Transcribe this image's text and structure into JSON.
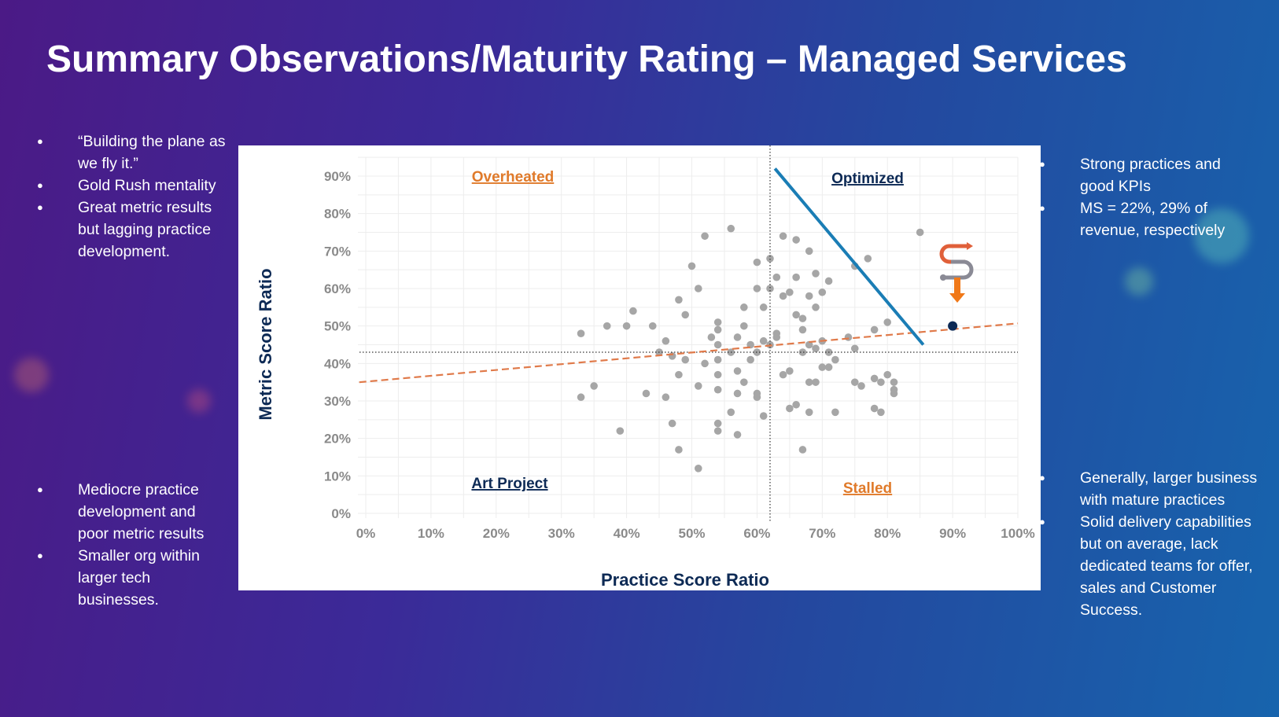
{
  "title": "Summary Observations/Maturity Rating – Managed Services",
  "left_top_bullets": [
    "“Building the plane as we fly it.”",
    "Gold Rush mentality",
    "Great metric results but lagging practice development."
  ],
  "left_bottom_bullets": [
    "Mediocre practice development and poor metric results",
    "Smaller org within larger tech businesses."
  ],
  "right_top_bullets": [
    "Strong practices and good KPIs",
    "MS = 22%, 29% of revenue, respectively"
  ],
  "right_bottom_bullets": [
    "Generally, larger business with mature practices",
    "Solid delivery capabilities but on average, lack dedicated teams for offer, sales and Customer Success."
  ],
  "chart_data": {
    "type": "scatter",
    "xlabel": "Practice Score Ratio",
    "ylabel": "Metric Score Ratio",
    "xlim": [
      0,
      100
    ],
    "ylim": [
      0,
      90
    ],
    "x_ticks": [
      "0%",
      "10%",
      "20%",
      "30%",
      "40%",
      "50%",
      "60%",
      "70%",
      "80%",
      "90%",
      "100%"
    ],
    "y_ticks": [
      "0%",
      "10%",
      "20%",
      "30%",
      "40%",
      "50%",
      "60%",
      "70%",
      "80%",
      "90%"
    ],
    "grid": true,
    "quadrant_labels": {
      "top_left": "Overheated",
      "top_right": "Optimized",
      "bottom_left": "Art Project",
      "bottom_right": "Stalled"
    },
    "quadrant_divider": {
      "x": 62,
      "y": 43
    },
    "trendline": {
      "from": [
        -1,
        35
      ],
      "to": [
        100,
        50.7
      ],
      "color": "#e07a4a"
    },
    "frontier_line": {
      "from": [
        62.75,
        92
      ],
      "to": [
        85.5,
        45
      ],
      "color": "#1a7db5"
    },
    "highlight_point": [
      90,
      50
    ],
    "highlight_color": "#0d2a55",
    "point_color": "#a6a6a6",
    "points": [
      [
        33,
        48
      ],
      [
        37,
        50
      ],
      [
        40,
        50
      ],
      [
        41,
        54
      ],
      [
        44,
        50
      ],
      [
        35,
        34
      ],
      [
        33,
        31
      ],
      [
        39,
        22
      ],
      [
        43,
        32
      ],
      [
        46,
        31
      ],
      [
        47,
        24
      ],
      [
        48,
        17
      ],
      [
        51,
        12
      ],
      [
        46,
        46
      ],
      [
        45,
        43
      ],
      [
        47,
        42
      ],
      [
        48,
        37
      ],
      [
        49,
        41
      ],
      [
        49,
        53
      ],
      [
        48,
        57
      ],
      [
        50,
        66
      ],
      [
        51,
        60
      ],
      [
        52,
        74
      ],
      [
        56,
        76
      ],
      [
        51,
        34
      ],
      [
        52,
        40
      ],
      [
        54,
        51
      ],
      [
        54,
        49
      ],
      [
        53,
        47
      ],
      [
        54,
        45
      ],
      [
        54,
        41
      ],
      [
        54,
        37
      ],
      [
        54,
        33
      ],
      [
        54,
        24
      ],
      [
        54,
        22
      ],
      [
        56,
        27
      ],
      [
        57,
        21
      ],
      [
        57,
        32
      ],
      [
        57,
        38
      ],
      [
        56,
        43
      ],
      [
        57,
        47
      ],
      [
        58,
        50
      ],
      [
        58,
        55
      ],
      [
        59,
        45
      ],
      [
        59,
        41
      ],
      [
        58,
        35
      ],
      [
        60,
        32
      ],
      [
        60,
        31
      ],
      [
        61,
        26
      ],
      [
        60,
        67
      ],
      [
        62,
        68
      ],
      [
        60,
        60
      ],
      [
        61,
        55
      ],
      [
        62,
        60
      ],
      [
        63,
        48
      ],
      [
        61,
        46
      ],
      [
        60,
        43
      ],
      [
        64,
        74
      ],
      [
        66,
        73
      ],
      [
        68,
        70
      ],
      [
        69,
        64
      ],
      [
        63,
        63
      ],
      [
        64,
        58
      ],
      [
        65,
        59
      ],
      [
        66,
        63
      ],
      [
        68,
        58
      ],
      [
        70,
        59
      ],
      [
        66,
        53
      ],
      [
        67,
        52
      ],
      [
        67,
        49
      ],
      [
        69,
        55
      ],
      [
        71,
        62
      ],
      [
        75,
        66
      ],
      [
        77,
        68
      ],
      [
        80,
        51
      ],
      [
        78,
        49
      ],
      [
        85,
        75
      ],
      [
        64,
        37
      ],
      [
        65,
        38
      ],
      [
        67,
        43
      ],
      [
        68,
        45
      ],
      [
        69,
        44
      ],
      [
        71,
        43
      ],
      [
        72,
        41
      ],
      [
        70,
        39
      ],
      [
        68,
        35
      ],
      [
        69,
        35
      ],
      [
        71,
        39
      ],
      [
        75,
        44
      ],
      [
        75,
        35
      ],
      [
        76,
        34
      ],
      [
        78,
        36
      ],
      [
        80,
        37
      ],
      [
        79,
        35
      ],
      [
        81,
        35
      ],
      [
        81,
        33
      ],
      [
        81,
        32
      ],
      [
        78,
        28
      ],
      [
        79,
        27
      ],
      [
        72,
        27
      ],
      [
        65,
        28
      ],
      [
        66,
        29
      ],
      [
        68,
        27
      ],
      [
        67,
        17
      ],
      [
        74,
        47
      ],
      [
        70,
        46
      ],
      [
        63,
        47
      ],
      [
        62,
        45
      ]
    ]
  }
}
